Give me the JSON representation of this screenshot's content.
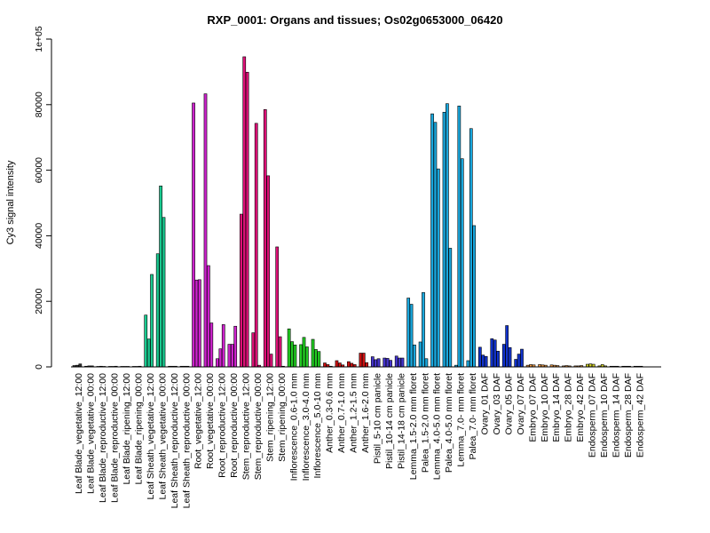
{
  "chart_data": {
    "type": "bar",
    "title": "RXP_0001: Organs and tissues; Os02g0653000_06420",
    "xlabel": "",
    "ylabel": "Cy3 signal intensity",
    "ylim": [
      0,
      100000
    ],
    "yticks": [
      0,
      20000,
      40000,
      60000,
      80000,
      100000
    ],
    "ytick_labels": [
      "0",
      "20000",
      "40000",
      "60000",
      "80000",
      "1e+05"
    ],
    "grid": false,
    "legend": "none",
    "groups": [
      {
        "label": "Leaf Blade_vegetative_12:00",
        "color": "#2f2f2f",
        "values": [
          400,
          500,
          900
        ]
      },
      {
        "label": "Leaf Blade_vegetative_00:00",
        "color": "#2f2f2f",
        "values": [
          200,
          300,
          300
        ]
      },
      {
        "label": "Leaf Blade_reproductive_12:00",
        "color": "#2f2f2f",
        "values": [
          150,
          200,
          150
        ]
      },
      {
        "label": "Leaf Blade_reproductive_00:00",
        "color": "#2f2f2f",
        "values": [
          150,
          150,
          200
        ]
      },
      {
        "label": "Leaf Blade_ripening_12:00",
        "color": "#2f2f2f",
        "values": [
          150,
          150,
          150
        ]
      },
      {
        "label": "Leaf Blade_ripening_00:00",
        "color": "#2f2f2f",
        "values": [
          150,
          150,
          200
        ]
      },
      {
        "label": "Leaf Sheath_vegetative_12:00",
        "color": "#19c98f",
        "values": [
          15800,
          8500,
          28200
        ]
      },
      {
        "label": "Leaf Sheath_vegetative_00:00",
        "color": "#19c98f",
        "values": [
          34500,
          55200,
          45600
        ]
      },
      {
        "label": "Leaf Sheath_reproductive_12:00",
        "color": "#19c98f",
        "values": [
          200,
          200,
          200
        ]
      },
      {
        "label": "Leaf Sheath_reproductive_00:00",
        "color": "#19c98f",
        "values": [
          200,
          200,
          200
        ]
      },
      {
        "label": "Root_vegetative_12:00",
        "color": "#cc22cc",
        "values": [
          80500,
          26500,
          26600
        ]
      },
      {
        "label": "Root_vegetative_00:00",
        "color": "#cc22cc",
        "values": [
          83300,
          30900,
          13400
        ]
      },
      {
        "label": "Root_reproductive_12:00",
        "color": "#cc22cc",
        "values": [
          2500,
          5500,
          12900
        ]
      },
      {
        "label": "Root_reproductive_00:00",
        "color": "#cc22cc",
        "values": [
          6900,
          6900,
          12400
        ]
      },
      {
        "label": "Stem_reproductive_12:00",
        "color": "#dd1177",
        "values": [
          46600,
          94600,
          89900
        ]
      },
      {
        "label": "Stem_reproductive_00:00",
        "color": "#dd1177",
        "values": [
          10400,
          74300,
          500
        ]
      },
      {
        "label": "Stem_ripening_12:00",
        "color": "#dd1177",
        "values": [
          78500,
          58300,
          3900
        ]
      },
      {
        "label": "Stem_ripening_00:00",
        "color": "#dd1177",
        "values": [
          36600,
          9200,
          200
        ]
      },
      {
        "label": "Inflorescence_0.6-1.0 mm",
        "color": "#22cc22",
        "values": [
          11600,
          7700,
          6700
        ]
      },
      {
        "label": "Inflorescence_3.0-4.0 mm",
        "color": "#22cc22",
        "values": [
          6800,
          9000,
          6100
        ]
      },
      {
        "label": "Inflorescence_5.0-10 mm",
        "color": "#22cc22",
        "values": [
          8400,
          5300,
          4700
        ]
      },
      {
        "label": "Anther_0.3-0.6 mm",
        "color": "#cc1111",
        "values": [
          1200,
          700,
          200
        ]
      },
      {
        "label": "Anther_0.7-1.0 mm",
        "color": "#cc1111",
        "values": [
          1900,
          1200,
          600
        ]
      },
      {
        "label": "Anther_1.2-1.5 mm",
        "color": "#cc1111",
        "values": [
          1600,
          1100,
          700
        ]
      },
      {
        "label": "Anther_1.6-2.0 mm",
        "color": "#cc1111",
        "values": [
          4200,
          4200,
          1300
        ]
      },
      {
        "label": "Pistil_5-10 cm panicle",
        "color": "#4433cc",
        "values": [
          3100,
          2200,
          2500
        ]
      },
      {
        "label": "Pistil_10-14 cm panicle",
        "color": "#4433cc",
        "values": [
          2700,
          2600,
          2000
        ]
      },
      {
        "label": "Pistil_14-18 cm panicle",
        "color": "#4433cc",
        "values": [
          3300,
          2700,
          2700
        ]
      },
      {
        "label": "Lemma_1.5-2.0 mm floret",
        "color": "#1aa7dd",
        "values": [
          21000,
          19100,
          6700
        ]
      },
      {
        "label": "Palea_1.5-2.0 mm floret",
        "color": "#1aa7dd",
        "values": [
          7600,
          22700,
          2500
        ]
      },
      {
        "label": "Lemma_4.0-5.0 mm floret",
        "color": "#1aa7dd",
        "values": [
          77200,
          74600,
          60400
        ]
      },
      {
        "label": "Palea_4.0-5.0 mm floret",
        "color": "#1aa7dd",
        "values": [
          77700,
          80300,
          36200
        ]
      },
      {
        "label": "Lemma_7.0- mm floret",
        "color": "#1aa7dd",
        "values": [
          500,
          79600,
          63500
        ]
      },
      {
        "label": "Palea_7.0- mm floret",
        "color": "#1aa7dd",
        "values": [
          1900,
          72700,
          43100
        ]
      },
      {
        "label": "Ovary_01 DAF",
        "color": "#1133cc",
        "values": [
          6000,
          3600,
          3200
        ]
      },
      {
        "label": "Ovary_03 DAF",
        "color": "#1133cc",
        "values": [
          8600,
          8200,
          4800
        ]
      },
      {
        "label": "Ovary_05 DAF",
        "color": "#1133cc",
        "values": [
          6900,
          12600,
          5900
        ]
      },
      {
        "label": "Ovary_07 DAF",
        "color": "#1133cc",
        "values": [
          2300,
          3900,
          5400
        ]
      },
      {
        "label": "Embryo_07 DAF",
        "color": "#ee9944",
        "values": [
          500,
          700,
          600
        ]
      },
      {
        "label": "Embryo_10 DAF",
        "color": "#ee9944",
        "values": [
          700,
          600,
          500
        ]
      },
      {
        "label": "Embryo_14 DAF",
        "color": "#ee9944",
        "values": [
          600,
          500,
          400
        ]
      },
      {
        "label": "Embryo_28 DAF",
        "color": "#ee9944",
        "values": [
          300,
          400,
          300
        ]
      },
      {
        "label": "Embryo_42 DAF",
        "color": "#ee9944",
        "values": [
          300,
          300,
          400
        ]
      },
      {
        "label": "Endosperm_07 DAF",
        "color": "#cccc22",
        "values": [
          800,
          900,
          800
        ]
      },
      {
        "label": "Endosperm_10 DAF",
        "color": "#cccc22",
        "values": [
          300,
          700,
          300
        ]
      },
      {
        "label": "Endosperm_14 DAF",
        "color": "#cccc22",
        "values": [
          200,
          200,
          200
        ]
      },
      {
        "label": "Endosperm_28 DAF",
        "color": "#cccc22",
        "values": [
          200,
          200,
          200
        ]
      },
      {
        "label": "Endosperm_42 DAF",
        "color": "#cccc22",
        "values": [
          200,
          200,
          200
        ]
      }
    ]
  }
}
